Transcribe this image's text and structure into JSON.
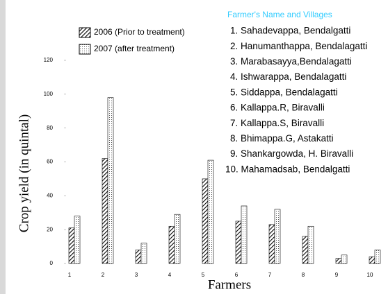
{
  "chart_data": {
    "type": "bar",
    "x_label": "Farmers",
    "y_label": "Crop yield (in quintal)",
    "categories": [
      "1",
      "2",
      "3",
      "4",
      "5",
      "6",
      "7",
      "8",
      "9",
      "10"
    ],
    "series": [
      {
        "name": "2006 (Prior to treatment)",
        "color": "#000000",
        "pattern": "hatch",
        "values": [
          21,
          62,
          8,
          22,
          50,
          25,
          23,
          16,
          3,
          4
        ]
      },
      {
        "name": "2007 (after treatment)",
        "color": "#000000",
        "pattern": "dots",
        "values": [
          28,
          98,
          12,
          29,
          61,
          34,
          32,
          22,
          5,
          8
        ]
      }
    ],
    "ylim": [
      0,
      120
    ],
    "yticks": [
      0,
      20,
      40,
      60,
      80,
      100,
      120
    ],
    "grid": false,
    "notes_title": "Farmer's Name and Villages",
    "notes_color": "#33ccff",
    "notes": [
      "1. Sahadevappa, Bendalgatti",
      "2. Hanumanthappa, Bendalagatti",
      "3. Marabasayya,Bendalagatti",
      "4. Ishwarappa, Bendalagatti",
      "5. Siddappa, Bendalagatti",
      "6. Kallappa.R, Biravalli",
      "7. Kallappa.S, Biravalli",
      "8. Bhimappa.G, Astakatti",
      "9. Shankargowda, H. Biravalli",
      "10. Mahamadsab, Bendalgatti"
    ]
  }
}
